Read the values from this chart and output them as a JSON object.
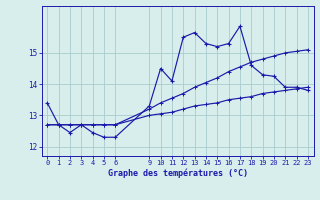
{
  "xlabel": "Graphe des températures (°C)",
  "background_color": "#d8eeed",
  "grid_color": "#a8cccc",
  "line_color": "#1a1aaa",
  "text_color": "#1a1aaa",
  "xlim": [
    -0.5,
    23.5
  ],
  "ylim": [
    11.7,
    16.5
  ],
  "yticks": [
    12,
    13,
    14,
    15
  ],
  "xticks": [
    0,
    1,
    2,
    3,
    4,
    5,
    6,
    9,
    10,
    11,
    12,
    13,
    14,
    15,
    16,
    17,
    18,
    19,
    20,
    21,
    22,
    23
  ],
  "hours": [
    0,
    1,
    2,
    3,
    4,
    5,
    6,
    9,
    10,
    11,
    12,
    13,
    14,
    15,
    16,
    17,
    18,
    19,
    20,
    21,
    22,
    23
  ],
  "temp_main": [
    13.4,
    12.7,
    12.45,
    12.7,
    12.45,
    12.3,
    12.3,
    13.3,
    14.5,
    14.1,
    15.5,
    15.65,
    15.3,
    15.2,
    15.3,
    15.85,
    14.6,
    14.3,
    14.25,
    13.9,
    13.9,
    13.8
  ],
  "temp_low": [
    12.7,
    12.7,
    12.7,
    12.7,
    12.7,
    12.7,
    12.7,
    13.0,
    13.05,
    13.1,
    13.2,
    13.3,
    13.35,
    13.4,
    13.5,
    13.55,
    13.6,
    13.7,
    13.75,
    13.8,
    13.85,
    13.9
  ],
  "temp_high": [
    12.7,
    12.7,
    12.7,
    12.7,
    12.7,
    12.7,
    12.7,
    13.2,
    13.4,
    13.55,
    13.7,
    13.9,
    14.05,
    14.2,
    14.4,
    14.55,
    14.7,
    14.8,
    14.9,
    15.0,
    15.05,
    15.1
  ]
}
